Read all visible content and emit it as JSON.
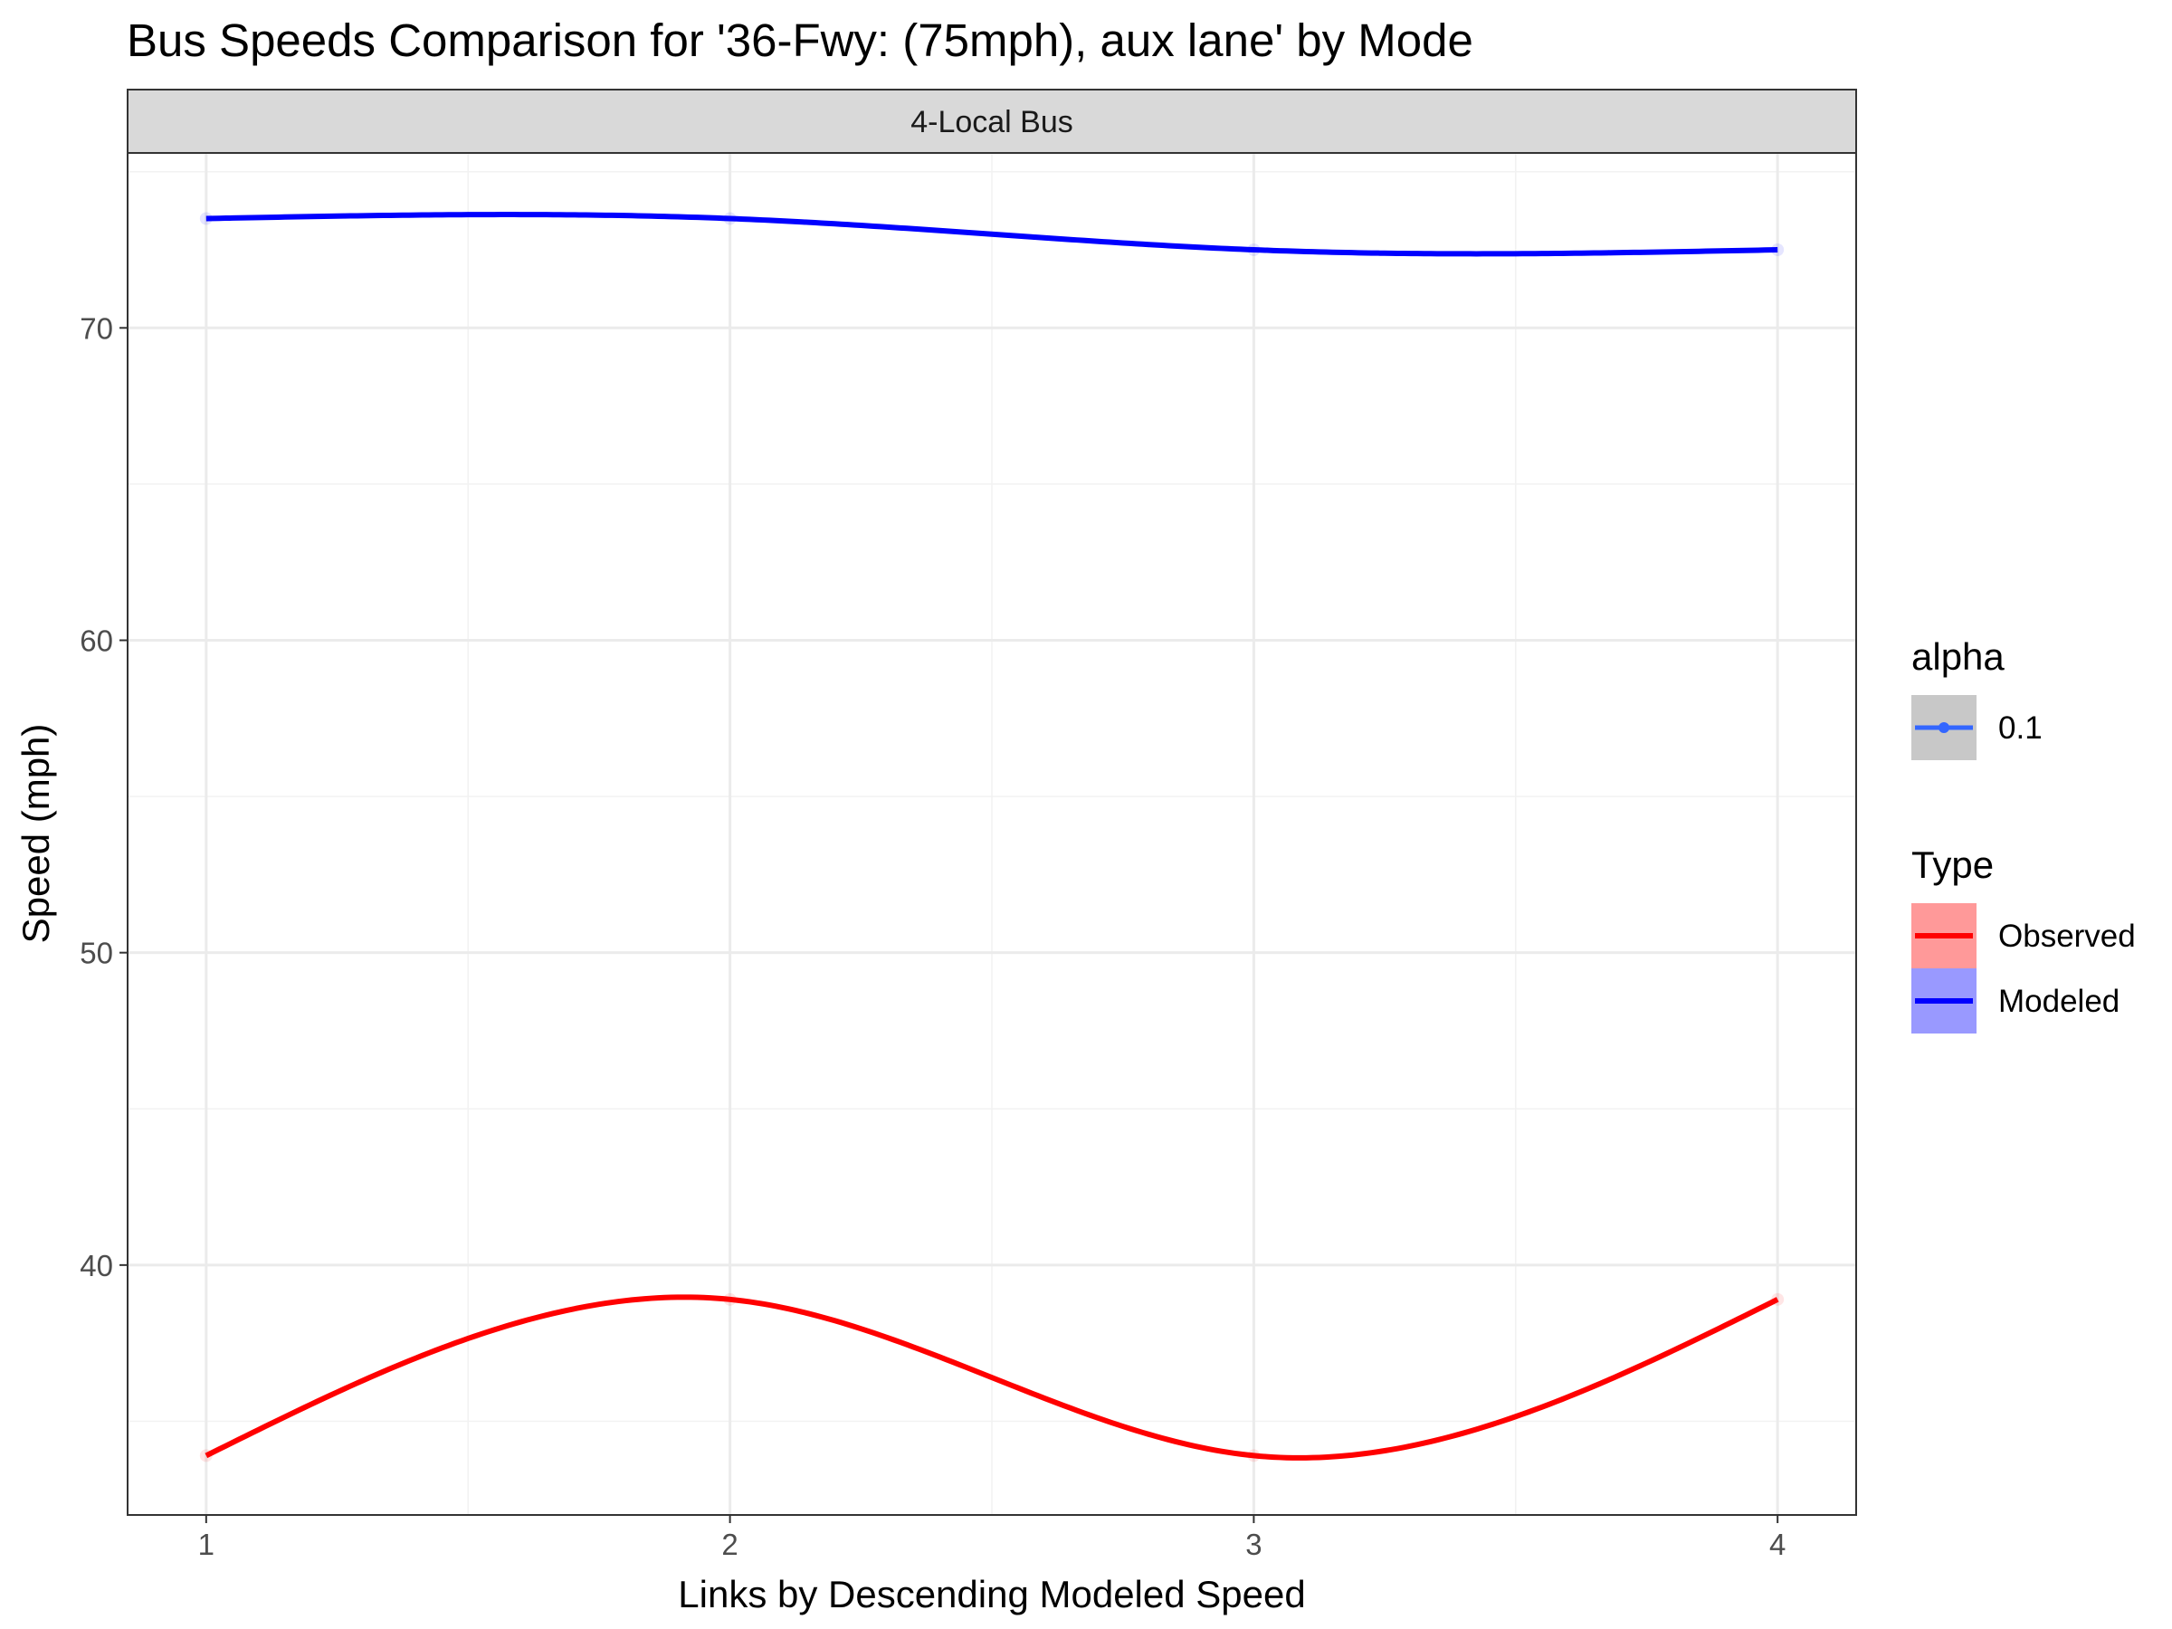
{
  "chart_data": {
    "type": "line",
    "title": "Bus Speeds Comparison for '36-Fwy: (75mph), aux lane' by Mode",
    "facet": "4-Local Bus",
    "xlabel": "Links by Descending Modeled Speed",
    "ylabel": "Speed (mph)",
    "x": [
      1,
      2,
      3,
      4
    ],
    "x_ticks": [
      "1",
      "2",
      "3",
      "4"
    ],
    "y_ticks": [
      "40",
      "50",
      "60",
      "70"
    ],
    "xlim": [
      0.85,
      4.15
    ],
    "ylim": [
      32,
      75.6
    ],
    "grid": true,
    "series": [
      {
        "name": "Observed",
        "values": [
          33.9,
          38.9,
          33.9,
          38.9
        ],
        "color": "#ff0000"
      },
      {
        "name": "Modeled",
        "values": [
          73.5,
          73.5,
          72.5,
          72.5
        ],
        "color": "#0000ff"
      }
    ],
    "legend": {
      "position": "right",
      "alpha": {
        "title": "alpha",
        "items": [
          {
            "label": "0.1",
            "color": "#3366ff"
          }
        ]
      },
      "type": {
        "title": "Type",
        "items": [
          {
            "label": "Observed",
            "color": "#ff0000",
            "fill": "#ff9999"
          },
          {
            "label": "Modeled",
            "color": "#0000ff",
            "fill": "#9999ff"
          }
        ]
      }
    }
  }
}
